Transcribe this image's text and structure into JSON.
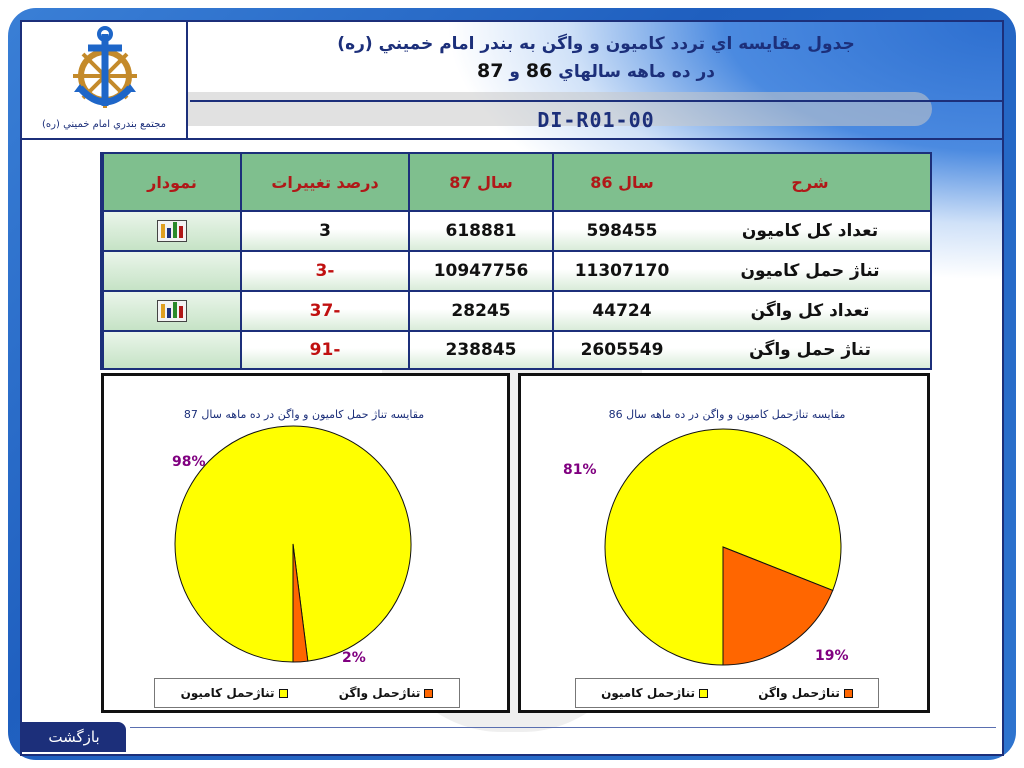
{
  "header": {
    "logo_caption": "مجتمع بندري امام خميني (ره)",
    "title_line1": "جدول مقايسه اي تردد كاميون و واگن به بندر امام خميني (ره)",
    "title_line2_prefix": "در ده ماهه سالهاي",
    "title_line2_y1": "86",
    "title_line2_and": "و",
    "title_line2_y2": "87",
    "doc_code": "DI-R01-00"
  },
  "table": {
    "headers": {
      "description": "شرح",
      "year86": "سال 86",
      "year87": "سال 87",
      "change": "درصد تغييرات",
      "chart": "نمودار"
    },
    "rows": [
      {
        "description": "تعداد كل كاميون",
        "year86": "598455",
        "year87": "618881",
        "change": "3",
        "has_chart": true
      },
      {
        "description": "تناژ حمل كاميون",
        "year86": "11307170",
        "year87": "10947756",
        "change": "-3",
        "has_chart": false
      },
      {
        "description": "تعداد كل واگن",
        "year86": "44724",
        "year87": "28245",
        "change": "-37",
        "has_chart": true
      },
      {
        "description": "تناژ حمل واگن",
        "year86": "2605549",
        "year87": "238845",
        "change": "-91",
        "has_chart": false
      }
    ]
  },
  "colors": {
    "truck": "#ffff00",
    "wagon": "#ff6600",
    "label": "#800080",
    "title": "#1c2f7a",
    "chart_title": "#1c2f7a"
  },
  "chart_data": [
    {
      "type": "pie",
      "title": "مقايسه تناژ حمل كاميون و واگن در ده ماهه سال 87",
      "categories": [
        "تناژحمل كاميون",
        "تناژحمل واگن"
      ],
      "values": [
        98,
        2
      ],
      "labels": [
        "98%",
        "2%"
      ],
      "legend": "bottom"
    },
    {
      "type": "pie",
      "title": "مقايسه تناژحمل كاميون و واگن در ده ماهه سال 86",
      "categories": [
        "تناژحمل كاميون",
        "تناژحمل واگن"
      ],
      "values": [
        81,
        19
      ],
      "labels": [
        "81%",
        "19%"
      ],
      "legend": "bottom"
    }
  ],
  "nav": {
    "back_label": "بازگشت"
  }
}
